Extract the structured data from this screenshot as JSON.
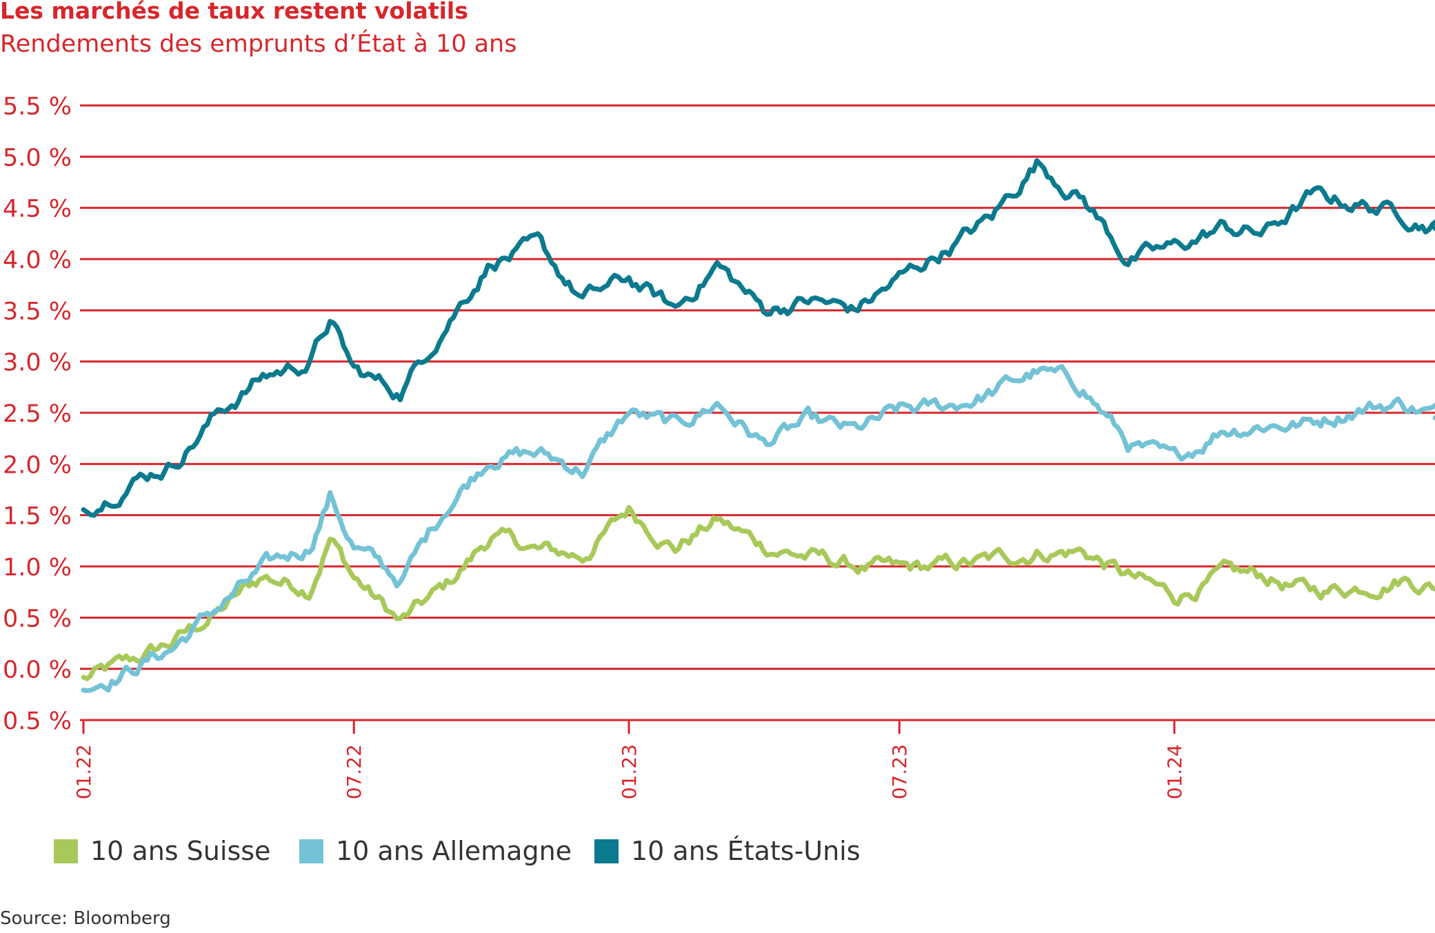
{
  "title": "Les marchés de taux restent volatils",
  "subtitle": "Rendements des emprunts d’État à 10 ans",
  "source": "Source: Bloomberg",
  "colors": {
    "accent": "#d7262b",
    "suisse": "#a8c95a",
    "allemagne": "#74c2d6",
    "usa": "#0b7a8e"
  },
  "chart_data": {
    "type": "line",
    "title": "Les marchés de taux restent volatils",
    "subtitle": "Rendements des emprunts d’État à 10 ans",
    "xlabel": "",
    "ylabel": "",
    "ylim": [
      -0.5,
      5.5
    ],
    "xlim": [
      "2022-01",
      "2024-07"
    ],
    "y_ticks": [
      -0.5,
      0.0,
      0.5,
      1.0,
      1.5,
      2.0,
      2.5,
      3.0,
      3.5,
      4.0,
      4.5,
      5.0,
      5.5
    ],
    "y_tick_labels": [
      "−0.5 %",
      "0.0 %",
      "0.5 %",
      "1.0 %",
      "1.5 %",
      "2.0 %",
      "2.5 %",
      "3.0 %",
      "3.5 %",
      "4.0 %",
      "4.5 %",
      "5.0 %",
      "5.5 %"
    ],
    "x_ticks": [
      {
        "date": "2022-01",
        "label": "01.22"
      },
      {
        "date": "2022-07",
        "label": "07.22"
      },
      {
        "date": "2023-01",
        "label": "01.23"
      },
      {
        "date": "2023-07",
        "label": "07.23"
      },
      {
        "date": "2024-01",
        "label": "01.24"
      }
    ],
    "grid": true,
    "legend_position": "bottom-left",
    "series": [
      {
        "name": "10 ans Suisse",
        "color": "#a8c95a",
        "points": [
          [
            "2022-01",
            -0.1
          ],
          [
            "2022-02",
            0.05
          ],
          [
            "2022-03",
            0.25
          ],
          [
            "2022-04",
            0.55
          ],
          [
            "2022-05",
            0.9
          ],
          [
            "2022-06",
            0.8
          ],
          [
            "2022-06-15",
            1.3
          ],
          [
            "2022-07",
            0.9
          ],
          [
            "2022-08",
            0.45
          ],
          [
            "2022-09",
            0.8
          ],
          [
            "2022-10",
            1.3
          ],
          [
            "2022-11",
            1.15
          ],
          [
            "2022-12",
            1.1
          ],
          [
            "2023-01",
            1.55
          ],
          [
            "2023-02",
            1.2
          ],
          [
            "2023-03",
            1.45
          ],
          [
            "2023-04",
            1.2
          ],
          [
            "2023-05",
            1.1
          ],
          [
            "2023-06",
            1.0
          ],
          [
            "2023-07",
            0.95
          ],
          [
            "2023-08",
            1.0
          ],
          [
            "2023-09",
            1.05
          ],
          [
            "2023-10",
            1.15
          ],
          [
            "2023-11",
            1.15
          ],
          [
            "2023-12",
            0.9
          ],
          [
            "2024-01",
            0.7
          ],
          [
            "2024-02",
            0.9
          ],
          [
            "2024-03",
            0.9
          ],
          [
            "2024-04",
            0.75
          ],
          [
            "2024-05",
            0.8
          ],
          [
            "2024-06",
            0.9
          ],
          [
            "2024-07",
            0.78
          ]
        ]
      },
      {
        "name": "10 ans Allemagne",
        "color": "#74c2d6",
        "points": [
          [
            "2022-01",
            -0.15
          ],
          [
            "2022-02",
            0.0
          ],
          [
            "2022-03",
            0.2
          ],
          [
            "2022-04",
            0.6
          ],
          [
            "2022-05",
            0.95
          ],
          [
            "2022-06",
            1.2
          ],
          [
            "2022-06-15",
            1.7
          ],
          [
            "2022-07",
            1.2
          ],
          [
            "2022-08",
            0.85
          ],
          [
            "2022-09",
            1.6
          ],
          [
            "2022-10",
            2.1
          ],
          [
            "2022-11",
            2.1
          ],
          [
            "2022-12",
            1.95
          ],
          [
            "2023-01",
            2.5
          ],
          [
            "2023-02",
            2.35
          ],
          [
            "2023-03",
            2.6
          ],
          [
            "2023-04",
            2.2
          ],
          [
            "2023-05",
            2.4
          ],
          [
            "2023-06",
            2.3
          ],
          [
            "2023-07",
            2.5
          ],
          [
            "2023-08",
            2.55
          ],
          [
            "2023-09",
            2.7
          ],
          [
            "2023-10",
            2.9
          ],
          [
            "2023-11",
            2.75
          ],
          [
            "2023-12",
            2.2
          ],
          [
            "2024-01",
            2.0
          ],
          [
            "2024-02",
            2.35
          ],
          [
            "2024-03",
            2.4
          ],
          [
            "2024-04",
            2.4
          ],
          [
            "2024-05",
            2.55
          ],
          [
            "2024-06",
            2.6
          ],
          [
            "2024-07",
            2.45
          ]
        ]
      },
      {
        "name": "10 ans États-Unis",
        "color": "#0b7a8e",
        "points": [
          [
            "2022-01",
            1.55
          ],
          [
            "2022-02",
            1.85
          ],
          [
            "2022-03",
            2.0
          ],
          [
            "2022-04",
            2.5
          ],
          [
            "2022-05",
            2.85
          ],
          [
            "2022-06",
            3.0
          ],
          [
            "2022-06-15",
            3.4
          ],
          [
            "2022-07",
            2.9
          ],
          [
            "2022-08",
            2.7
          ],
          [
            "2022-09",
            3.4
          ],
          [
            "2022-10",
            4.0
          ],
          [
            "2022-11",
            4.1
          ],
          [
            "2022-12",
            3.6
          ],
          [
            "2023-01",
            3.8
          ],
          [
            "2023-02",
            3.5
          ],
          [
            "2023-03",
            3.95
          ],
          [
            "2023-04",
            3.5
          ],
          [
            "2023-05",
            3.6
          ],
          [
            "2023-06",
            3.5
          ],
          [
            "2023-07",
            3.8
          ],
          [
            "2023-08",
            4.1
          ],
          [
            "2023-09",
            4.4
          ],
          [
            "2023-10",
            4.95
          ],
          [
            "2023-11",
            4.6
          ],
          [
            "2023-12",
            4.0
          ],
          [
            "2024-01",
            4.1
          ],
          [
            "2024-02",
            4.3
          ],
          [
            "2024-03",
            4.25
          ],
          [
            "2024-04",
            4.6
          ],
          [
            "2024-05",
            4.55
          ],
          [
            "2024-06",
            4.45
          ],
          [
            "2024-07",
            4.3
          ]
        ]
      }
    ]
  }
}
